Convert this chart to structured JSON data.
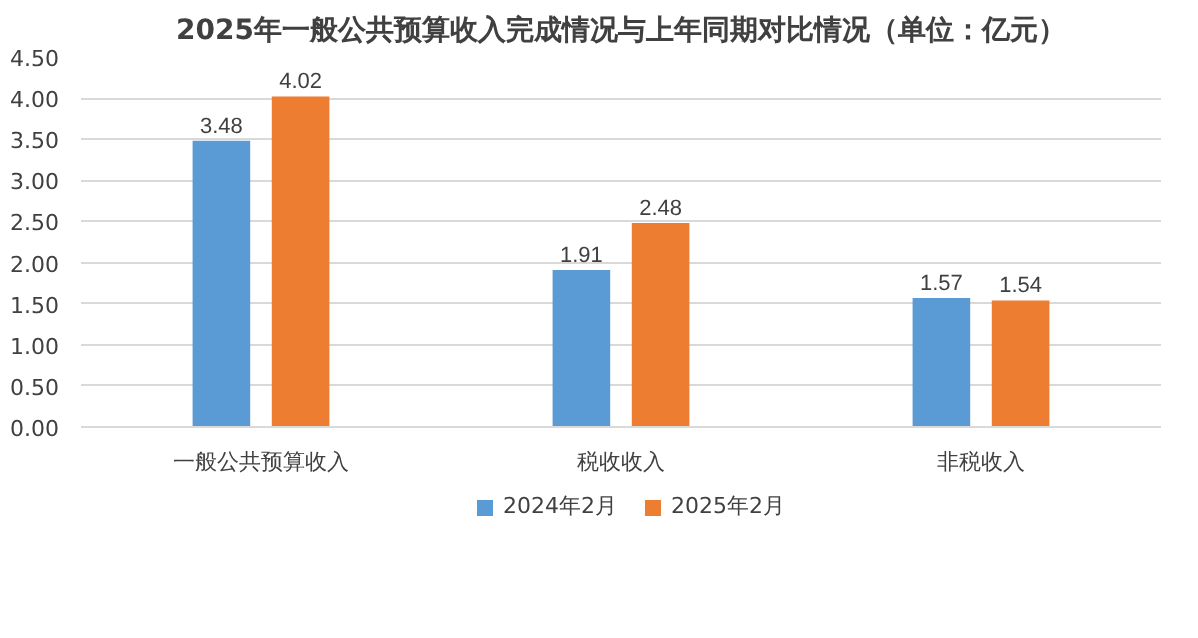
{
  "chart_data": {
    "type": "bar",
    "title": "2025年一般公共预算收入完成情况与上年同期对比情况（单位：亿元）",
    "categories": [
      "一般公共预算收入",
      "税收收入",
      "非税收入"
    ],
    "series": [
      {
        "name": "2024年2月",
        "color": "#5b9bd5",
        "values": [
          3.48,
          1.91,
          1.57
        ]
      },
      {
        "name": "2025年2月",
        "color": "#ed7d31",
        "values": [
          4.02,
          2.48,
          1.54
        ]
      }
    ],
    "ylim": [
      0,
      4.5
    ],
    "yticks": [
      {
        "value": 0,
        "label": "0.00"
      },
      {
        "value": 0.5,
        "label": "0.50"
      },
      {
        "value": 1,
        "label": "1.00"
      },
      {
        "value": 1.5,
        "label": "1.50"
      },
      {
        "value": 2,
        "label": "2.00"
      },
      {
        "value": 2.5,
        "label": "2.50"
      },
      {
        "value": 3,
        "label": "3.00"
      },
      {
        "value": 3.5,
        "label": "3.50"
      },
      {
        "value": 4,
        "label": "4.00"
      },
      {
        "value": 4.5,
        "label": "4.50"
      }
    ],
    "grid": "y",
    "legend": "bottom",
    "data_labels": true
  }
}
